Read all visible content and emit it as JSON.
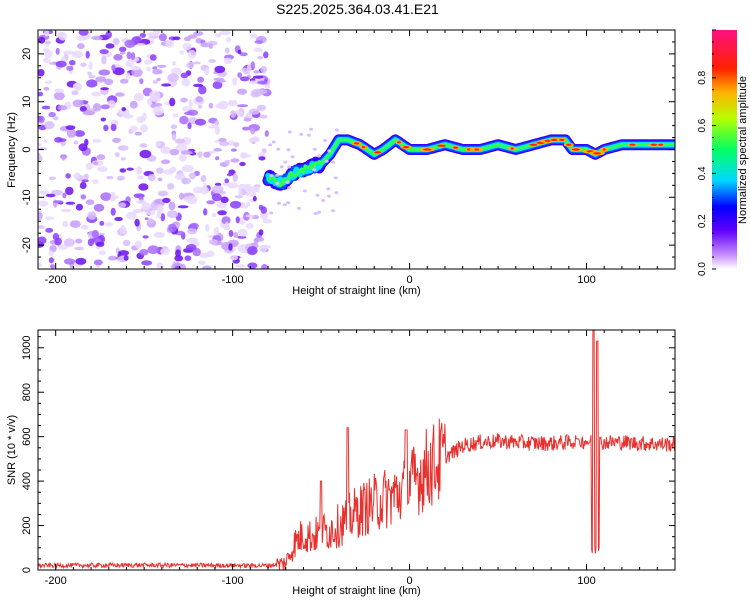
{
  "title": "S225.2025.364.03.41.E21",
  "chart_data": [
    {
      "type": "heatmap",
      "panel": "spectrogram",
      "xlabel": "Height of straight line (km)",
      "ylabel": "Frequency (Hz)",
      "xlim": [
        -210,
        150
      ],
      "ylim": [
        -25,
        25
      ],
      "xticks": [
        -200,
        -100,
        0,
        100
      ],
      "xtick_labels": [
        "-200",
        "-100",
        "0",
        "100"
      ],
      "yticks": [
        -20,
        -10,
        0,
        10,
        20
      ],
      "ytick_labels": [
        "-20",
        "-10",
        "0",
        "10",
        "20"
      ],
      "noise_region_x": [
        -210,
        -80
      ],
      "ridge_x": [
        -80,
        -72,
        -65,
        -58,
        -50,
        -45,
        -40,
        -35,
        -28,
        -20,
        -15,
        -8,
        0,
        10,
        20,
        30,
        40,
        50,
        60,
        70,
        80,
        88,
        92,
        100,
        105,
        110,
        120,
        130,
        150
      ],
      "ridge_y": [
        -6,
        -7,
        -5,
        -4,
        -3,
        -1,
        2,
        2,
        1,
        -1,
        0,
        2,
        0,
        0,
        1,
        0,
        0,
        1,
        0,
        1,
        2,
        2,
        0,
        0,
        -1,
        0,
        1,
        1,
        1
      ],
      "colorbar": {
        "label": "Normalized spectral amplitude",
        "range": [
          0,
          1
        ],
        "ticks": [
          0,
          0.2,
          0.4,
          0.6,
          0.8
        ],
        "tick_labels": [
          "0.0",
          "0.2",
          "0.4",
          "0.6",
          "0.8"
        ]
      }
    },
    {
      "type": "line",
      "panel": "snr",
      "xlabel": "Height of straight line (km)",
      "ylabel": "SNR (10 * v/v)",
      "xlim": [
        -210,
        150
      ],
      "ylim": [
        0,
        1080
      ],
      "xticks": [
        -200,
        -100,
        0,
        100
      ],
      "xtick_labels": [
        "-200",
        "-100",
        "0",
        "100"
      ],
      "yticks": [
        0,
        200,
        400,
        600,
        800,
        1000
      ],
      "ytick_labels": [
        "0",
        "200",
        "400",
        "600",
        "800",
        "1000"
      ],
      "series": [
        {
          "name": "SNR",
          "color": "#e8312f",
          "x": [
            -210,
            -150,
            -80,
            -70,
            -65,
            -60,
            -55,
            -50,
            -45,
            -40,
            -35,
            -30,
            -25,
            -20,
            -15,
            -10,
            -5,
            0,
            5,
            10,
            15,
            20,
            25,
            30,
            40,
            50,
            60,
            70,
            80,
            90,
            95,
            100,
            103,
            106,
            110,
            120,
            130,
            150
          ],
          "y": [
            20,
            22,
            20,
            30,
            120,
            160,
            150,
            170,
            180,
            200,
            230,
            260,
            280,
            300,
            320,
            330,
            350,
            380,
            420,
            460,
            480,
            510,
            530,
            560,
            575,
            580,
            575,
            570,
            570,
            575,
            580,
            580,
            575,
            570,
            575,
            575,
            570,
            565
          ]
        }
      ],
      "spikes": [
        {
          "x": -50,
          "y": 400
        },
        {
          "x": -35,
          "y": 640
        },
        {
          "x": -2,
          "y": 630
        },
        {
          "x": 95,
          "y": 590
        },
        {
          "x": 104,
          "y": 1080
        },
        {
          "x": 106,
          "y": 1030
        }
      ]
    }
  ]
}
